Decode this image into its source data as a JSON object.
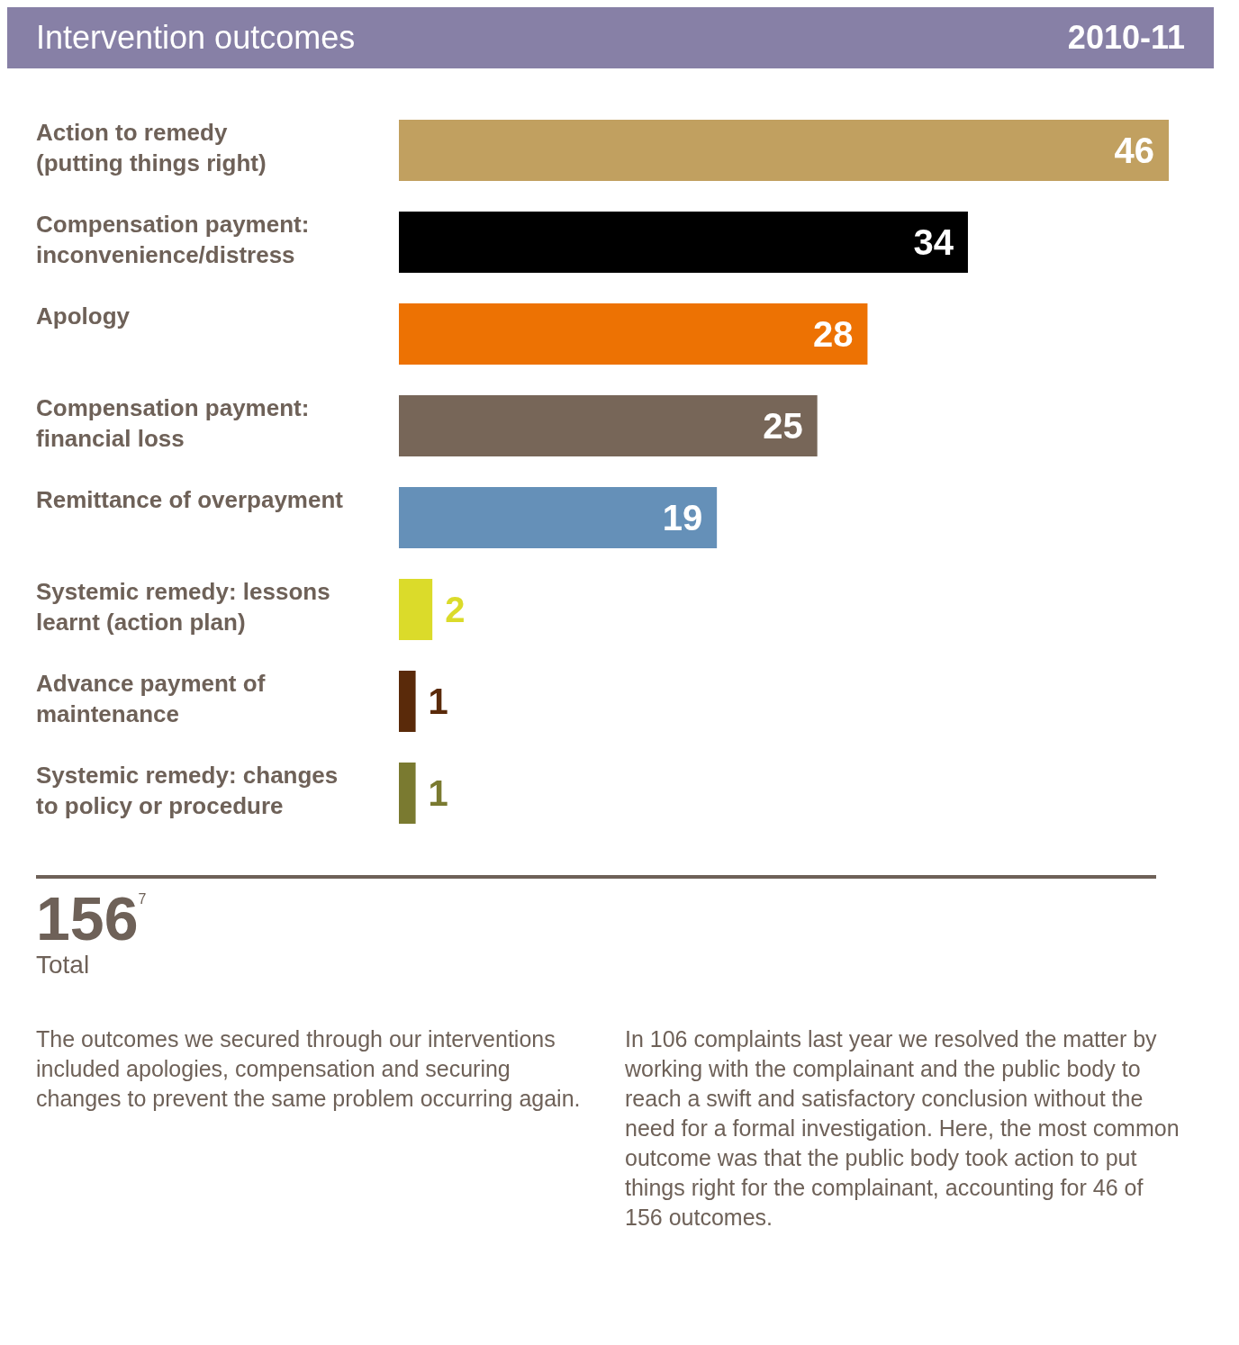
{
  "chart_data": {
    "type": "bar",
    "orientation": "horizontal",
    "title": "Intervention outcomes",
    "subtitle": "2010-11",
    "categories": [
      "Action to remedy (putting things right)",
      "Compensation payment: inconvenience/distress",
      "Apology",
      "Compensation payment: financial loss",
      "Remittance of overpayment",
      "Systemic remedy: lessons learnt (action plan)",
      "Advance payment of maintenance",
      "Systemic remedy: changes to policy or procedure"
    ],
    "values": [
      46,
      34,
      28,
      25,
      19,
      2,
      1,
      1
    ],
    "colors": [
      "#c1a060",
      "#000000",
      "#ed7203",
      "#776658",
      "#6590b8",
      "#dbdb2a",
      "#5a2a0a",
      "#7a7a30"
    ],
    "data_labels": true,
    "grid": false,
    "legend": false,
    "annotations": [
      "156$^{7}$",
      "Total",
      "The outcomes we secured through our interventions included apologies, compensation and securing changes to prevent the same problem occurring again.",
      "In 106 complaints last year we resolved the matter by working with the complainant and the public body to reach a swift and satisfactory conclusion without the need for a formal investigation. Here, the most common outcome was that the public body took action to put things right for the complainant, accounting for 46 of 156 outcomes."
    ]
  }
}
